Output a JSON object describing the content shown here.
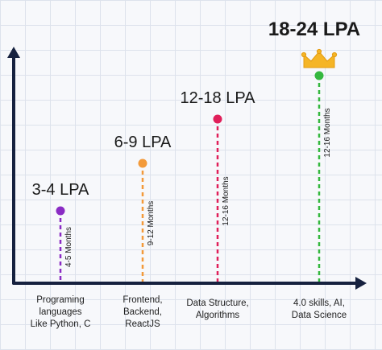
{
  "chart_data": {
    "type": "scatter",
    "categories": [
      "Programing\nlanguages\nLike Python, C",
      "Frontend,\nBackend,\nReactJS",
      "Data Structure,\nAlgorithms",
      "4.0 skills, AI,\nData Science"
    ],
    "points": [
      {
        "category": "Programing\nlanguages\nLike Python, C",
        "salary_label": "3-4 LPA",
        "duration": "4-5 Months",
        "level": 1,
        "color": "#8a2bc4"
      },
      {
        "category": "Frontend,\nBackend,\nReactJS",
        "salary_label": "6-9 LPA",
        "duration": "9-12 Months",
        "level": 2,
        "color": "#f39a3a"
      },
      {
        "category": "Data Structure,\nAlgorithms",
        "salary_label": "12-18 LPA",
        "duration": "12-16 Months",
        "level": 3,
        "color": "#e01f5a"
      },
      {
        "category": "4.0 skills, AI,\nData Science",
        "salary_label": "18-24 LPA",
        "duration": "12-16 Months",
        "level": 4,
        "color": "#35b83f",
        "highlight": true
      }
    ],
    "highlight_icon": "crown-icon",
    "axis_color": "#16213f",
    "grid": true
  }
}
